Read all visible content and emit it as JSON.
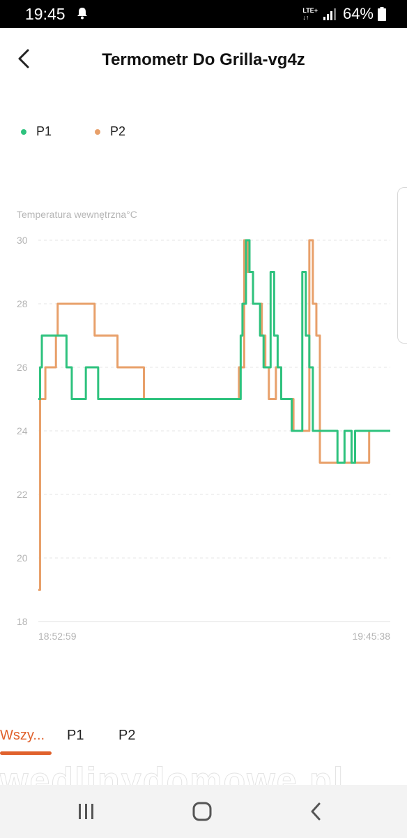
{
  "status_bar": {
    "time": "19:45",
    "network": "LTE+",
    "battery": "64%"
  },
  "header": {
    "title": "Termometr Do Grilla-vg4z"
  },
  "legend": [
    {
      "label": "P1",
      "color": "#2ec27e"
    },
    {
      "label": "P2",
      "color": "#e8a06a"
    }
  ],
  "chart_data": {
    "type": "line",
    "title": "",
    "ylabel": "Temperatura wewnętrzna°C",
    "xlabel": "",
    "ylim": [
      18,
      30
    ],
    "yticks": [
      18,
      20,
      22,
      24,
      26,
      28,
      30
    ],
    "x_tick_labels": [
      "18:52:59",
      "19:45:38"
    ],
    "xlim": [
      0,
      1
    ],
    "grid": true,
    "legend_position": "top-left",
    "series": [
      {
        "name": "P1",
        "color": "#2ec27e",
        "step": true,
        "x": [
          0.0,
          0.005,
          0.01,
          0.045,
          0.08,
          0.085,
          0.095,
          0.105,
          0.135,
          0.14,
          0.17,
          0.28,
          0.285,
          0.29,
          0.3,
          0.31,
          0.315,
          0.32,
          0.34,
          0.345,
          0.355,
          0.36,
          0.375,
          0.38,
          0.385,
          0.39,
          0.4,
          0.42,
          0.425,
          0.43,
          0.44,
          0.45,
          0.46,
          0.47,
          0.48,
          0.49,
          0.5,
          0.51,
          0.525,
          0.535,
          0.56,
          0.575,
          0.58,
          0.59,
          0.6,
          0.61,
          0.62,
          0.63,
          0.64,
          0.65,
          0.66,
          0.67,
          0.68,
          0.69,
          0.7,
          0.71,
          0.72,
          0.73,
          0.74,
          0.75,
          0.76,
          0.77,
          0.78,
          0.79,
          0.8,
          0.81,
          0.82,
          0.83,
          0.84,
          0.85,
          0.86,
          0.87,
          0.875,
          0.88,
          0.885,
          0.89,
          0.895,
          0.9,
          0.91,
          0.92,
          0.93,
          0.94,
          0.95,
          0.96,
          0.97,
          0.98,
          0.99,
          1.0
        ],
        "y": [
          25,
          26,
          27,
          27,
          26,
          26,
          25,
          25,
          26,
          26,
          25,
          25,
          25,
          25,
          25,
          25,
          25,
          25,
          25,
          25,
          25,
          25,
          25,
          25,
          25,
          25,
          25,
          25,
          25,
          25,
          25,
          25,
          25,
          25,
          25,
          25,
          25,
          25,
          25,
          25,
          25,
          27,
          28,
          30,
          29,
          28,
          28,
          27,
          26,
          26,
          29,
          27,
          26,
          25,
          25,
          25,
          24,
          24,
          24,
          29,
          27,
          26,
          24,
          24,
          24,
          24,
          24,
          24,
          24,
          23,
          23,
          24,
          24,
          24,
          24,
          23,
          23,
          24,
          24,
          24,
          24,
          24,
          24,
          24,
          24,
          24,
          24,
          24
        ]
      },
      {
        "name": "P2",
        "color": "#e8a06a",
        "step": true,
        "x": [
          0.0,
          0.005,
          0.01,
          0.02,
          0.045,
          0.05,
          0.055,
          0.155,
          0.16,
          0.22,
          0.225,
          0.28,
          0.285,
          0.29,
          0.3,
          0.31,
          0.315,
          0.32,
          0.34,
          0.345,
          0.355,
          0.36,
          0.375,
          0.38,
          0.385,
          0.39,
          0.4,
          0.42,
          0.425,
          0.43,
          0.44,
          0.45,
          0.46,
          0.47,
          0.48,
          0.49,
          0.5,
          0.51,
          0.525,
          0.535,
          0.56,
          0.57,
          0.585,
          0.595,
          0.61,
          0.615,
          0.635,
          0.645,
          0.655,
          0.665,
          0.675,
          0.69,
          0.705,
          0.72,
          0.725,
          0.73,
          0.74,
          0.745,
          0.755,
          0.76,
          0.77,
          0.78,
          0.79,
          0.8,
          0.81,
          0.82,
          0.83,
          0.84,
          0.85,
          0.86,
          0.87,
          0.88,
          0.89,
          0.9,
          0.91,
          0.92,
          0.93,
          0.935,
          0.94,
          0.95,
          0.96,
          0.97,
          0.98,
          0.99,
          1.0
        ],
        "y": [
          19,
          25,
          25,
          26,
          26,
          27,
          28,
          28,
          27,
          27,
          26,
          26,
          26,
          26,
          25,
          25,
          25,
          25,
          25,
          25,
          25,
          25,
          25,
          25,
          25,
          25,
          25,
          25,
          25,
          25,
          25,
          25,
          25,
          25,
          25,
          25,
          25,
          25,
          25,
          25,
          25,
          26,
          30,
          29,
          28,
          28,
          27,
          26,
          25,
          25,
          26,
          25,
          25,
          25,
          24,
          24,
          24,
          24,
          24,
          24,
          30,
          28,
          27,
          23,
          23,
          23,
          23,
          23,
          23,
          23,
          23,
          23,
          23,
          23,
          23,
          23,
          23,
          23,
          24,
          24,
          24,
          24,
          24,
          24,
          24
        ]
      }
    ]
  },
  "tabs": [
    {
      "label": "Wszy..."
    },
    {
      "label": "P1"
    },
    {
      "label": "P2"
    }
  ],
  "watermark": "wedlinydomowe.pl"
}
